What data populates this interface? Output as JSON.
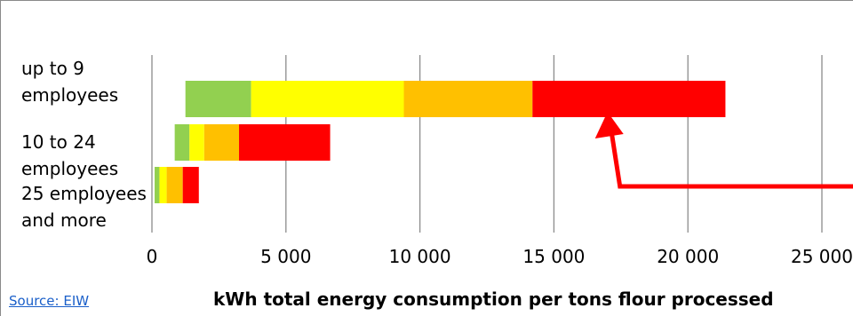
{
  "chart_data": {
    "type": "bar",
    "orientation": "horizontal",
    "stacked": true,
    "title": "",
    "xlabel": "kWh total energy consumption per tons flour processed",
    "ylabel": "",
    "xlim": [
      0,
      25000
    ],
    "xticks": [
      0,
      5000,
      10000,
      15000,
      20000,
      25000
    ],
    "xtick_labels": [
      "0",
      "5 000",
      "10 000",
      "15 000",
      "20 000",
      "25 000"
    ],
    "grid": true,
    "categories": [
      {
        "lines": [
          "up to 9",
          "employees"
        ]
      },
      {
        "lines": [
          "10 to 24",
          "employees"
        ]
      },
      {
        "lines": [
          "25 employees",
          "and more"
        ]
      }
    ],
    "segments": [
      [
        {
          "start": 1250,
          "end": 3700,
          "color": "#92d050"
        },
        {
          "start": 3700,
          "end": 9400,
          "color": "#ffff00"
        },
        {
          "start": 9400,
          "end": 14200,
          "color": "#ffc000"
        },
        {
          "start": 14200,
          "end": 21400,
          "color": "#ff0000"
        }
      ],
      [
        {
          "start": 850,
          "end": 1400,
          "color": "#92d050"
        },
        {
          "start": 1400,
          "end": 1950,
          "color": "#ffff00"
        },
        {
          "start": 1950,
          "end": 3250,
          "color": "#ffc000"
        },
        {
          "start": 3250,
          "end": 6650,
          "color": "#ff0000"
        }
      ],
      [
        {
          "start": 100,
          "end": 280,
          "color": "#92d050"
        },
        {
          "start": 280,
          "end": 550,
          "color": "#ffff00"
        },
        {
          "start": 550,
          "end": 1150,
          "color": "#ffc000"
        },
        {
          "start": 1150,
          "end": 1750,
          "color": "#ff0000"
        }
      ]
    ],
    "annotation": {
      "type": "arrow",
      "points_to_value": 17000,
      "category_index": 0,
      "color": "#ff0000"
    }
  },
  "source": {
    "label": "Source: EIW"
  }
}
